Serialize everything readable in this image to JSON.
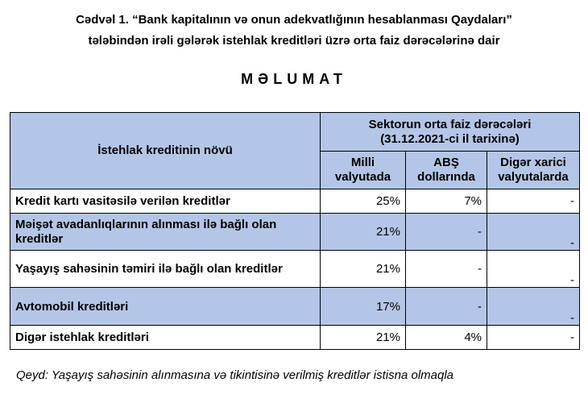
{
  "heading": {
    "line1": "Cədvəl 1. “Bank kapitalının və onun adekvatlığının hesablanması Qaydaları”",
    "line2": "tələbindən irəli gələrək istehlak kreditləri üzrə orta faiz dərəcələrinə dair",
    "title": "MƏLUMAT"
  },
  "table": {
    "col_type": "İstehlak kreditinin növü",
    "group_header_1": "Sektorun orta faiz dərəcələri",
    "group_header_2": "(31.12.2021-ci il tarixinə)",
    "columns": [
      [
        "Milli",
        "valyutada"
      ],
      [
        "ABŞ",
        "dollarında"
      ],
      [
        "Digər xarici",
        "valyutalarda"
      ]
    ],
    "rows": [
      {
        "label": "Kredit kartı vasitəsilə verilən kreditlər",
        "values": [
          "25%",
          "7%",
          "-"
        ]
      },
      {
        "label": "Məişət avadanlıqlarının alınması ilə bağlı olan kreditlər",
        "values": [
          "21%",
          "-",
          "-"
        ]
      },
      {
        "label": "Yaşayış sahəsinin təmiri ilə bağlı olan kreditlər",
        "values": [
          "21%",
          "-",
          "-"
        ]
      },
      {
        "label": "Avtomobil kreditləri",
        "values": [
          "17%",
          "-",
          "-"
        ]
      },
      {
        "label": "Digər istehlak kreditləri",
        "values": [
          "21%",
          "4%",
          "-"
        ]
      }
    ]
  },
  "note": "Qeyd: Yaşayış sahəsinin alınmasına və tikintisinə verilmiş kreditlər istisna olmaqla",
  "colors": {
    "header_fill": "#b4c6e7"
  }
}
